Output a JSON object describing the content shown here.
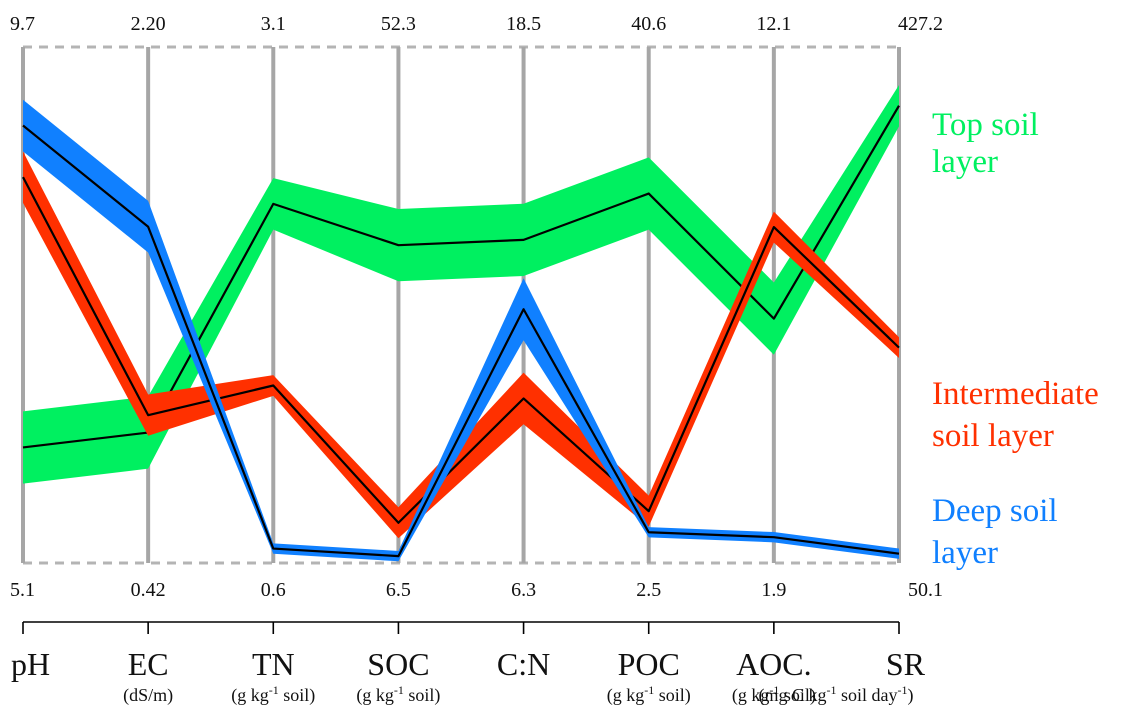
{
  "chart_data": {
    "type": "line",
    "subtype": "parallel-coordinates",
    "grid": true,
    "axes": [
      {
        "name": "pH",
        "unit": "",
        "top": "9.7",
        "bottom": "5.1"
      },
      {
        "name": "EC",
        "unit": "(dS/m)",
        "top": "2.20",
        "bottom": "0.42"
      },
      {
        "name": "TN",
        "unit": "(g kg-1 soil)",
        "top": "3.1",
        "bottom": "0.6"
      },
      {
        "name": "SOC",
        "unit": "(g kg-1 soil)",
        "top": "52.3",
        "bottom": "6.5"
      },
      {
        "name": "C:N",
        "unit": "",
        "top": "18.5",
        "bottom": "6.3"
      },
      {
        "name": "POC",
        "unit": "(g kg-1 soil)",
        "top": "40.6",
        "bottom": "2.5"
      },
      {
        "name": "AOC.",
        "unit": "(g kg-1 soil)",
        "top": "12.1",
        "bottom": "1.9"
      },
      {
        "name": "SR",
        "unit": "(mg C kg-1 soil day-1)",
        "top": "427.2",
        "bottom": "50.1"
      }
    ],
    "series": [
      {
        "name": "Top soil layer",
        "label_lines": [
          "Top soil",
          "layer"
        ],
        "color": "#00f060",
        "values": [
          6.13,
          0.87,
          2.34,
          34.71,
          13.94,
          29.78,
          6.73,
          384.3
        ],
        "band": [
          0.07,
          0.07,
          0.05,
          0.07,
          0.07,
          0.07,
          0.07,
          0.04
        ]
      },
      {
        "name": "Intermediate soil layer",
        "label_lines": [
          "Intermediate",
          "soil layer"
        ],
        "color": "#ff3000",
        "values": [
          8.54,
          0.93,
          1.46,
          10.07,
          10.19,
          6.33,
          8.54,
          207.5
        ],
        "band": [
          0.05,
          0.04,
          0.02,
          0.03,
          0.05,
          0.03,
          0.03,
          0.02
        ]
      },
      {
        "name": "Deep soil layer",
        "label_lines": [
          "Deep soil",
          "layer"
        ],
        "color": "#1080ff",
        "values": [
          9.0,
          1.58,
          0.67,
          7.11,
          12.3,
          4.77,
          2.41,
          56.9
        ],
        "band": [
          0.05,
          0.05,
          0.01,
          0.01,
          0.06,
          0.01,
          0.01,
          0.01
        ]
      }
    ]
  }
}
